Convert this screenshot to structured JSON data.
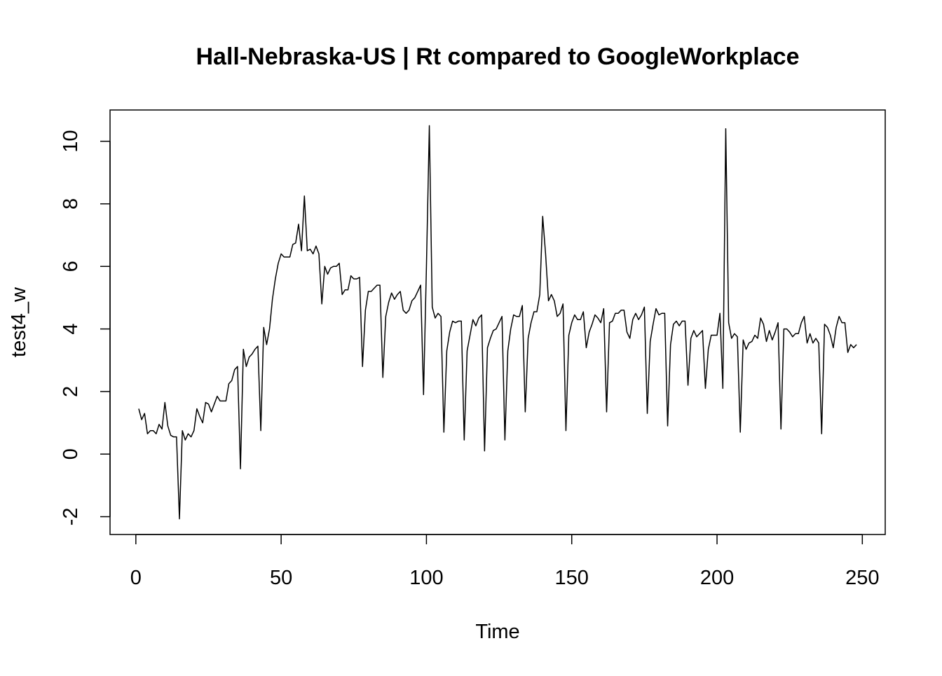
{
  "chart_data": {
    "type": "line",
    "title": "Hall-Nebraska-US | Rt compared to GoogleWorkplace",
    "xlabel": "Time",
    "ylabel": "test4_w",
    "color": "#000000",
    "x": [
      1,
      2,
      3,
      4,
      5,
      6,
      7,
      8,
      9,
      10,
      11,
      12,
      13,
      14,
      15,
      16,
      17,
      18,
      19,
      20,
      21,
      22,
      23,
      24,
      25,
      26,
      27,
      28,
      29,
      30,
      31,
      32,
      33,
      34,
      35,
      36,
      37,
      38,
      39,
      40,
      41,
      42,
      43,
      44,
      45,
      46,
      47,
      48,
      49,
      50,
      51,
      52,
      53,
      54,
      55,
      56,
      57,
      58,
      59,
      60,
      61,
      62,
      63,
      64,
      65,
      66,
      67,
      68,
      69,
      70,
      71,
      72,
      73,
      74,
      75,
      76,
      77,
      78,
      79,
      80,
      81,
      82,
      83,
      84,
      85,
      86,
      87,
      88,
      89,
      90,
      91,
      92,
      93,
      94,
      95,
      96,
      97,
      98,
      99,
      100,
      101,
      102,
      103,
      104,
      105,
      106,
      107,
      108,
      109,
      110,
      111,
      112,
      113,
      114,
      115,
      116,
      117,
      118,
      119,
      120,
      121,
      122,
      123,
      124,
      125,
      126,
      127,
      128,
      129,
      130,
      131,
      132,
      133,
      134,
      135,
      136,
      137,
      138,
      139,
      140,
      141,
      142,
      143,
      144,
      145,
      146,
      147,
      148,
      149,
      150,
      151,
      152,
      153,
      154,
      155,
      156,
      157,
      158,
      159,
      160,
      161,
      162,
      163,
      164,
      165,
      166,
      167,
      168,
      169,
      170,
      171,
      172,
      173,
      174,
      175,
      176,
      177,
      178,
      179,
      180,
      181,
      182,
      183,
      184,
      185,
      186,
      187,
      188,
      189,
      190,
      191,
      192,
      193,
      194,
      195,
      196,
      197,
      198,
      199,
      200,
      201,
      202,
      203,
      204,
      205,
      206,
      207,
      208,
      209,
      210,
      211,
      212,
      213,
      214,
      215,
      216,
      217,
      218,
      219,
      220,
      221,
      222,
      223,
      224,
      225,
      226,
      227,
      228,
      229,
      230,
      231,
      232,
      233,
      234,
      235,
      236,
      237,
      238,
      239,
      240,
      241,
      242,
      243,
      244,
      245,
      246,
      247,
      248
    ],
    "values": [
      1.45,
      1.1,
      1.3,
      0.65,
      0.75,
      0.75,
      0.65,
      0.95,
      0.8,
      1.65,
      0.9,
      0.6,
      0.55,
      0.55,
      -2.07,
      0.75,
      0.45,
      0.65,
      0.55,
      0.75,
      1.45,
      1.2,
      1.0,
      1.65,
      1.6,
      1.35,
      1.6,
      1.85,
      1.7,
      1.7,
      1.7,
      2.25,
      2.35,
      2.7,
      2.8,
      -0.47,
      3.35,
      2.8,
      3.1,
      3.2,
      3.35,
      3.45,
      0.75,
      4.05,
      3.5,
      4.0,
      4.95,
      5.6,
      6.1,
      6.4,
      6.3,
      6.3,
      6.3,
      6.7,
      6.75,
      7.35,
      6.5,
      8.25,
      6.5,
      6.55,
      6.4,
      6.65,
      6.4,
      4.8,
      6.0,
      5.75,
      5.95,
      6.0,
      6.0,
      6.1,
      5.1,
      5.25,
      5.25,
      5.7,
      5.6,
      5.6,
      5.65,
      2.8,
      4.6,
      5.2,
      5.2,
      5.3,
      5.4,
      5.4,
      2.45,
      4.4,
      4.85,
      5.15,
      4.95,
      5.1,
      5.2,
      4.6,
      4.5,
      4.6,
      4.9,
      5.0,
      5.2,
      5.4,
      1.9,
      6.0,
      10.5,
      4.7,
      4.35,
      4.5,
      4.4,
      0.7,
      3.3,
      3.9,
      4.25,
      4.2,
      4.25,
      4.25,
      0.45,
      3.3,
      3.8,
      4.3,
      4.1,
      4.35,
      4.45,
      0.1,
      3.4,
      3.7,
      3.95,
      4.0,
      4.2,
      4.4,
      0.45,
      3.3,
      4.0,
      4.45,
      4.4,
      4.4,
      4.75,
      1.35,
      3.7,
      4.2,
      4.55,
      4.55,
      5.1,
      7.6,
      6.4,
      4.9,
      5.1,
      4.9,
      4.4,
      4.5,
      4.8,
      0.75,
      3.8,
      4.2,
      4.45,
      4.3,
      4.3,
      4.55,
      3.4,
      3.9,
      4.15,
      4.45,
      4.35,
      4.2,
      4.65,
      1.35,
      4.2,
      4.25,
      4.5,
      4.5,
      4.6,
      4.6,
      3.9,
      3.7,
      4.3,
      4.5,
      4.3,
      4.45,
      4.7,
      1.3,
      3.6,
      4.15,
      4.65,
      4.45,
      4.5,
      4.5,
      0.9,
      3.5,
      4.15,
      4.25,
      4.1,
      4.25,
      4.25,
      2.2,
      3.7,
      3.95,
      3.75,
      3.85,
      3.95,
      2.1,
      3.35,
      3.8,
      3.8,
      3.8,
      4.5,
      2.1,
      10.4,
      4.2,
      3.7,
      3.85,
      3.75,
      0.7,
      3.65,
      3.35,
      3.55,
      3.6,
      3.8,
      3.7,
      4.35,
      4.15,
      3.6,
      3.95,
      3.65,
      3.9,
      4.2,
      0.8,
      4.0,
      4.0,
      3.9,
      3.75,
      3.85,
      3.85,
      4.2,
      4.4,
      3.55,
      3.85,
      3.55,
      3.7,
      3.55,
      0.65,
      4.15,
      4.05,
      3.8,
      3.4,
      4.05,
      4.4,
      4.2,
      4.2,
      3.25,
      3.5,
      3.4,
      3.5
    ],
    "xlim": [
      -8.88,
      257.88
    ],
    "xticks": [
      0,
      50,
      100,
      150,
      200,
      250
    ],
    "ylim": [
      -2.57,
      11.0
    ],
    "yticks": [
      -2,
      0,
      2,
      4,
      6,
      8,
      10
    ]
  }
}
